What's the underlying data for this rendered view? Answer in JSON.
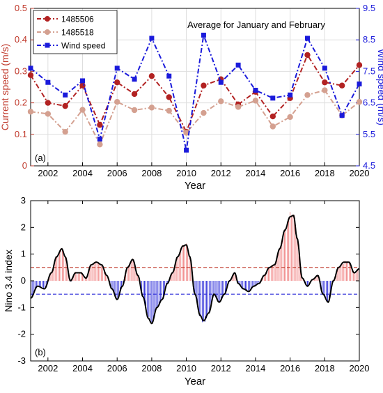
{
  "chart_data": [
    {
      "type": "line",
      "panel_label": "(a)",
      "title": "Average for January and February",
      "xlabel": "Year",
      "ylabel_left": "Current speed (m/s)",
      "ylabel_right": "Wind speed (m/s)",
      "xlim": [
        2001,
        2020
      ],
      "ylim_left": [
        0,
        0.5
      ],
      "ylim_right": [
        4.5,
        9.5
      ],
      "x_ticks": [
        "2002",
        "2004",
        "2006",
        "2008",
        "2010",
        "2012",
        "2014",
        "2016",
        "2018",
        "2020"
      ],
      "y_left_ticks": [
        "0",
        "0.1",
        "0.2",
        "0.3",
        "0.4",
        "0.5"
      ],
      "y_right_ticks": [
        "4.5",
        "5.5",
        "6.5",
        "7.5",
        "8.5",
        "9.5"
      ],
      "legend_position": "top-left",
      "grid": true,
      "x": [
        2001,
        2002,
        2003,
        2004,
        2005,
        2006,
        2007,
        2008,
        2009,
        2010,
        2011,
        2012,
        2013,
        2014,
        2015,
        2016,
        2017,
        2018,
        2019,
        2020
      ],
      "series": [
        {
          "name": "1485506",
          "axis": "left",
          "color": "#b22222",
          "values": [
            0.288,
            0.2,
            0.19,
            0.255,
            0.13,
            0.265,
            0.228,
            0.285,
            0.218,
            0.108,
            0.255,
            0.275,
            0.195,
            0.235,
            0.157,
            0.215,
            0.352,
            0.265,
            0.255,
            0.32
          ]
        },
        {
          "name": "1485518",
          "axis": "left",
          "color": "#d4a090",
          "values": [
            0.172,
            0.165,
            0.108,
            0.178,
            0.068,
            0.203,
            0.177,
            0.185,
            0.175,
            0.105,
            0.168,
            0.205,
            0.187,
            0.207,
            0.125,
            0.155,
            0.225,
            0.24,
            0.16,
            0.203
          ]
        },
        {
          "name": "Wind speed",
          "axis": "right",
          "color": "#1a1adb",
          "values": [
            7.6,
            7.15,
            6.75,
            7.2,
            5.35,
            7.6,
            7.25,
            8.55,
            7.35,
            5.0,
            8.65,
            7.15,
            7.7,
            6.9,
            6.65,
            6.75,
            8.55,
            7.6,
            6.1,
            7.1
          ]
        }
      ]
    },
    {
      "type": "bar",
      "panel_label": "(b)",
      "xlabel": "Year",
      "ylabel": "Nino 3.4 index",
      "xlim": [
        2001,
        2020
      ],
      "ylim": [
        -3,
        3
      ],
      "x_ticks": [
        "2002",
        "2004",
        "2006",
        "2008",
        "2010",
        "2012",
        "2014",
        "2016",
        "2018",
        "2020"
      ],
      "y_ticks": [
        "-3",
        "-2",
        "-1",
        "0",
        "1",
        "2",
        "3"
      ],
      "thresholds": [
        0.5,
        -0.5
      ],
      "positive_color": "#f08080",
      "negative_color": "#2a2ad8",
      "smoothed_color": "#000000",
      "threshold_pos_color": "#c0392b",
      "threshold_neg_color": "#2a2ad8",
      "anchor_x": [
        2001.0,
        2001.4,
        2001.8,
        2002.2,
        2002.5,
        2002.8,
        2003.0,
        2003.3,
        2003.6,
        2003.9,
        2004.2,
        2004.5,
        2004.8,
        2005.1,
        2005.4,
        2005.7,
        2006.0,
        2006.3,
        2006.6,
        2006.9,
        2007.2,
        2007.5,
        2007.8,
        2008.0,
        2008.3,
        2008.6,
        2008.9,
        2009.2,
        2009.5,
        2009.8,
        2010.0,
        2010.2,
        2010.5,
        2010.8,
        2011.0,
        2011.3,
        2011.6,
        2011.9,
        2012.2,
        2012.5,
        2012.8,
        2013.0,
        2013.3,
        2013.6,
        2013.9,
        2014.2,
        2014.5,
        2014.8,
        2015.1,
        2015.4,
        2015.7,
        2016.0,
        2016.2,
        2016.4,
        2016.7,
        2017.0,
        2017.3,
        2017.6,
        2017.9,
        2018.2,
        2018.5,
        2018.8,
        2019.1,
        2019.4,
        2019.7,
        2020.0
      ],
      "anchor_y": [
        -0.65,
        -0.2,
        -0.3,
        0.3,
        0.9,
        1.2,
        0.9,
        0.0,
        0.3,
        0.3,
        0.1,
        0.6,
        0.7,
        0.6,
        0.2,
        -0.3,
        -0.7,
        -0.2,
        0.5,
        0.8,
        0.2,
        -0.6,
        -1.4,
        -1.6,
        -1.0,
        -0.7,
        -0.1,
        0.3,
        0.9,
        1.3,
        1.35,
        0.9,
        -0.5,
        -1.3,
        -1.5,
        -1.2,
        -0.5,
        -0.8,
        -0.5,
        0.0,
        0.3,
        -0.1,
        -0.3,
        -0.4,
        -0.2,
        -0.1,
        0.2,
        0.5,
        0.6,
        1.2,
        1.9,
        2.4,
        2.45,
        1.6,
        0.1,
        -0.2,
        0.05,
        0.2,
        -0.5,
        -0.8,
        0.0,
        0.5,
        0.7,
        0.7,
        0.3,
        0.45
      ]
    }
  ]
}
